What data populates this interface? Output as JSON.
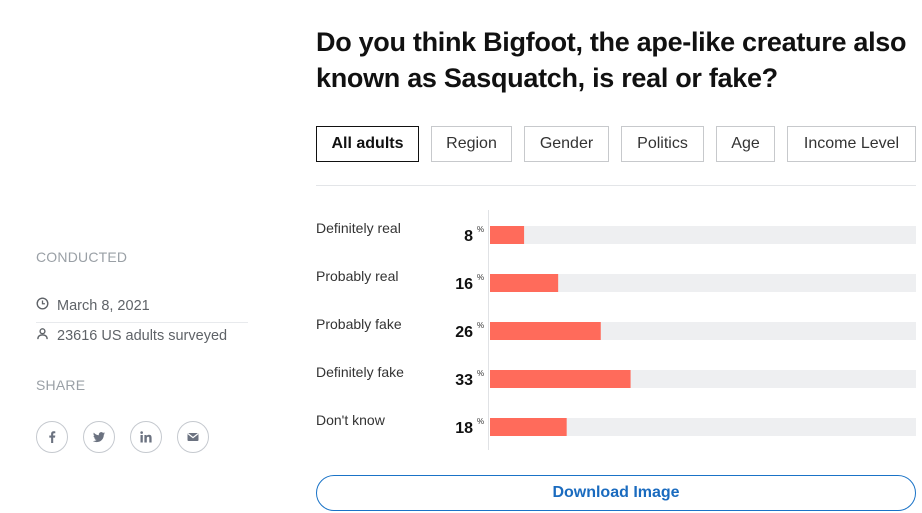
{
  "sidebar": {
    "conducted_label": "CONDUCTED",
    "date": "March 8, 2021",
    "surveyed": "23616 US adults surveyed",
    "share_label": "SHARE",
    "share_icons": [
      "facebook-icon",
      "twitter-icon",
      "linkedin-icon",
      "email-icon"
    ]
  },
  "question": "Do you think Bigfoot, the ape-like creature also known as Sasquatch, is real or fake?",
  "tabs": [
    {
      "label": "All adults",
      "active": true
    },
    {
      "label": "Region",
      "active": false
    },
    {
      "label": "Gender",
      "active": false
    },
    {
      "label": "Politics",
      "active": false
    },
    {
      "label": "Age",
      "active": false
    },
    {
      "label": "Income Level",
      "active": false
    }
  ],
  "chart_data": {
    "type": "bar",
    "orientation": "horizontal",
    "categories": [
      "Definitely real",
      "Probably real",
      "Probably fake",
      "Definitely fake",
      "Don't know"
    ],
    "values": [
      8,
      16,
      26,
      33,
      18
    ],
    "unit": "%",
    "xlim": [
      0,
      100
    ],
    "bar_color": "#ff6b5b",
    "track_color": "#eeeff1"
  },
  "download_label": "Download Image",
  "colors": {
    "accent": "#1a73c7",
    "bar": "#ff6b5b",
    "muted": "#9aa0a6"
  }
}
